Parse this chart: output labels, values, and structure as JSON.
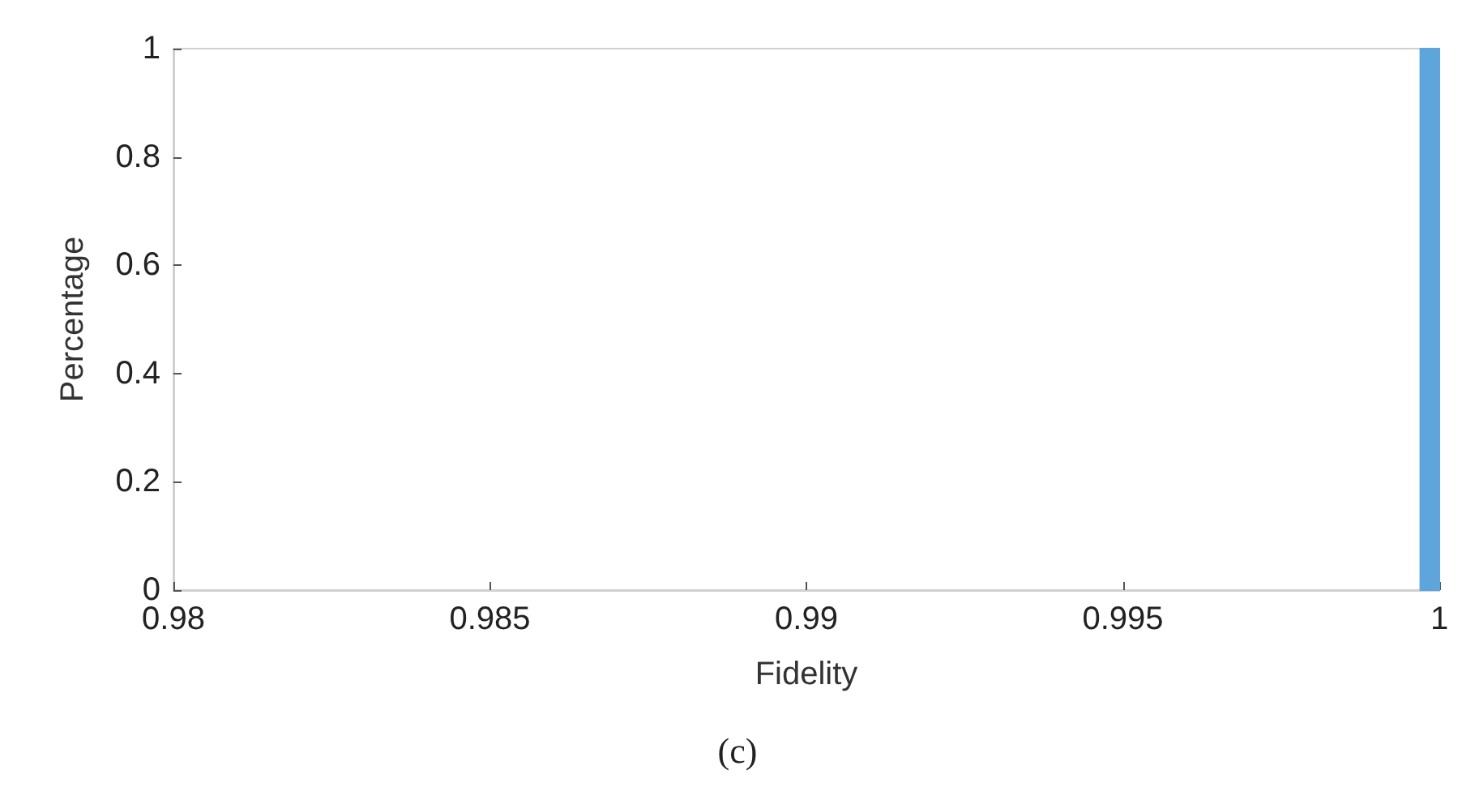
{
  "chart_data": {
    "type": "histogram",
    "xlabel": "Fidelity",
    "ylabel": "Percentage",
    "annotations": [
      "(c)"
    ],
    "bins": [
      0.9997,
      1
    ],
    "values": [
      1
    ],
    "color": "#5da5da",
    "xlim": [
      0.98,
      1
    ],
    "xticks": [
      0.98,
      0.985,
      0.99,
      0.995,
      1
    ],
    "ylim": [
      0,
      1
    ],
    "yticks": [
      0,
      0.2,
      0.4,
      0.6,
      0.8,
      1
    ],
    "grid": false
  }
}
